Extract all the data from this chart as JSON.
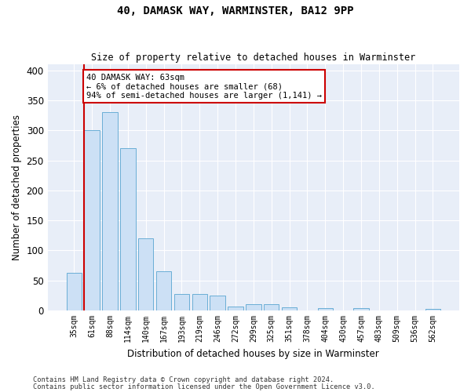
{
  "title": "40, DAMASK WAY, WARMINSTER, BA12 9PP",
  "subtitle": "Size of property relative to detached houses in Warminster",
  "xlabel": "Distribution of detached houses by size in Warminster",
  "ylabel": "Number of detached properties",
  "bar_color": "#cce0f5",
  "bar_edge_color": "#6aaed6",
  "background_color": "#e8eef8",
  "grid_color": "#ffffff",
  "fig_background": "#ffffff",
  "categories": [
    "35sqm",
    "61sqm",
    "88sqm",
    "114sqm",
    "140sqm",
    "167sqm",
    "193sqm",
    "219sqm",
    "246sqm",
    "272sqm",
    "299sqm",
    "325sqm",
    "351sqm",
    "378sqm",
    "404sqm",
    "430sqm",
    "457sqm",
    "483sqm",
    "509sqm",
    "536sqm",
    "562sqm"
  ],
  "values": [
    63,
    300,
    330,
    270,
    120,
    65,
    28,
    28,
    25,
    7,
    11,
    11,
    5,
    0,
    4,
    0,
    4,
    0,
    0,
    0,
    3
  ],
  "property_bar_index": 1,
  "property_line_color": "#cc0000",
  "annotation_text": "40 DAMASK WAY: 63sqm\n← 6% of detached houses are smaller (68)\n94% of semi-detached houses are larger (1,141) →",
  "annotation_box_color": "#ffffff",
  "annotation_edge_color": "#cc0000",
  "ylim": [
    0,
    410
  ],
  "yticks": [
    0,
    50,
    100,
    150,
    200,
    250,
    300,
    350,
    400
  ],
  "footnote1": "Contains HM Land Registry data © Crown copyright and database right 2024.",
  "footnote2": "Contains public sector information licensed under the Open Government Licence v3.0."
}
